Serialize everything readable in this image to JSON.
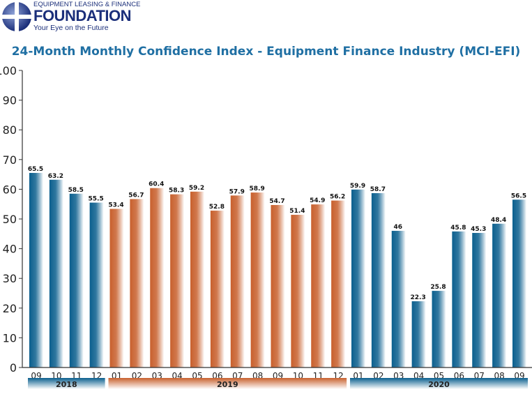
{
  "logo": {
    "line1": "EQUIPMENT LEASING & FINANCE",
    "line2": "FOUNDATION",
    "tagline": "Your Eye on the Future"
  },
  "chart_data": {
    "type": "bar",
    "title": "24-Month Monthly Confidence Index - Equipment Finance Industry (MCI-EFI)",
    "xlabel": "",
    "ylabel": "",
    "ylim": [
      0,
      100
    ],
    "yticks": [
      0,
      10,
      20,
      30,
      40,
      50,
      60,
      70,
      80,
      90,
      100
    ],
    "grid": false,
    "categories": [
      "09",
      "10",
      "11",
      "12",
      "01",
      "02",
      "03",
      "04",
      "05",
      "06",
      "07",
      "08",
      "09",
      "10",
      "11",
      "12",
      "01",
      "02",
      "03",
      "04",
      "05",
      "06",
      "07",
      "08",
      "09"
    ],
    "values": [
      65.5,
      63.2,
      58.5,
      55.5,
      53.4,
      56.7,
      60.4,
      58.3,
      59.2,
      52.8,
      57.9,
      58.9,
      54.7,
      51.4,
      54.9,
      56.2,
      59.9,
      58.7,
      46,
      22.3,
      25.8,
      45.8,
      45.3,
      48.4,
      56.5
    ],
    "value_labels": [
      "65.5",
      "63.2",
      "58.5",
      "55.5",
      "53.4",
      "56.7",
      "60.4",
      "58.3",
      "59.2",
      "52.8",
      "57.9",
      "58.9",
      "54.7",
      "51.4",
      "54.9",
      "56.2",
      "59.9",
      "58.7",
      "46",
      "22.3",
      "25.8",
      "45.8",
      "45.3",
      "48.4",
      "56.5"
    ],
    "year_groups": [
      {
        "label": "2018",
        "start": 0,
        "end": 3,
        "color": "#0b5f8e"
      },
      {
        "label": "2019",
        "start": 4,
        "end": 15,
        "color": "#c8602d"
      },
      {
        "label": "2020",
        "start": 16,
        "end": 24,
        "color": "#0b5f8e"
      }
    ]
  }
}
